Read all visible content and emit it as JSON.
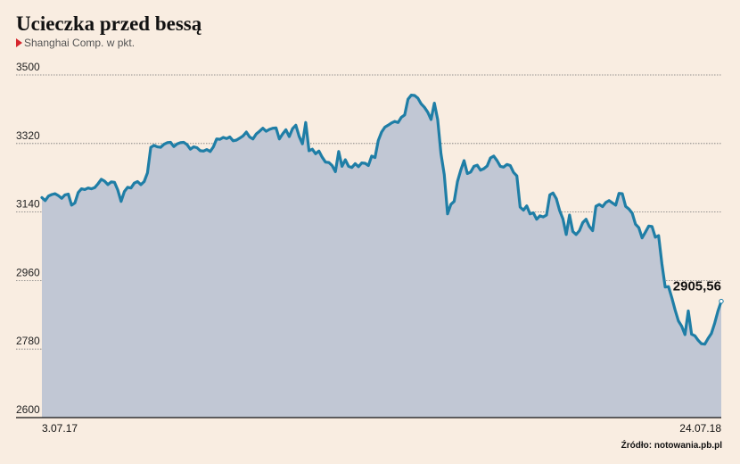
{
  "title": "Ucieczka przed bessą",
  "subtitle": "Shanghai Comp. w pkt.",
  "source": "Źródło: notowania.pb.pl",
  "colors": {
    "line": "#1f7ea6",
    "area": "#c1c7d4",
    "background": "#f9ede1",
    "marker": "#d6262d"
  },
  "chart_data": {
    "type": "area",
    "ylim": [
      2600,
      3500
    ],
    "yticks": [
      3500,
      3320,
      3140,
      2960,
      2780,
      2600
    ],
    "xtick_labels": [
      "3.07.17",
      "24.07.18"
    ],
    "grid": true,
    "end_value_label": "2905,56",
    "series": [
      {
        "values": [
          3178,
          3170,
          3182,
          3186,
          3188,
          3183,
          3176,
          3185,
          3187,
          3158,
          3164,
          3191,
          3201,
          3199,
          3203,
          3201,
          3204,
          3214,
          3226,
          3221,
          3212,
          3219,
          3218,
          3198,
          3168,
          3194,
          3205,
          3203,
          3216,
          3220,
          3212,
          3220,
          3243,
          3310,
          3315,
          3311,
          3310,
          3318,
          3322,
          3323,
          3312,
          3319,
          3322,
          3323,
          3317,
          3305,
          3311,
          3309,
          3301,
          3300,
          3304,
          3299,
          3311,
          3332,
          3331,
          3336,
          3333,
          3337,
          3327,
          3329,
          3334,
          3340,
          3350,
          3337,
          3332,
          3345,
          3352,
          3360,
          3352,
          3357,
          3360,
          3361,
          3332,
          3345,
          3356,
          3338,
          3359,
          3368,
          3339,
          3319,
          3375,
          3301,
          3305,
          3293,
          3300,
          3284,
          3271,
          3270,
          3262,
          3246,
          3299,
          3260,
          3277,
          3260,
          3257,
          3267,
          3259,
          3269,
          3268,
          3262,
          3287,
          3283,
          3328,
          3350,
          3363,
          3368,
          3374,
          3378,
          3375,
          3389,
          3395,
          3436,
          3447,
          3446,
          3439,
          3424,
          3415,
          3402,
          3383,
          3426,
          3383,
          3293,
          3238,
          3135,
          3160,
          3168,
          3220,
          3250,
          3275,
          3241,
          3245,
          3260,
          3263,
          3250,
          3254,
          3261,
          3282,
          3287,
          3275,
          3260,
          3258,
          3265,
          3262,
          3244,
          3235,
          3153,
          3145,
          3156,
          3135,
          3138,
          3121,
          3130,
          3127,
          3132,
          3185,
          3190,
          3175,
          3144,
          3122,
          3081,
          3132,
          3089,
          3081,
          3091,
          3112,
          3121,
          3102,
          3091,
          3155,
          3160,
          3154,
          3165,
          3170,
          3164,
          3158,
          3189,
          3188,
          3155,
          3148,
          3137,
          3108,
          3099,
          3072,
          3087,
          3103,
          3102,
          3074,
          3078,
          3004,
          2943,
          2944,
          2915,
          2883,
          2854,
          2840,
          2818,
          2880,
          2819,
          2815,
          2803,
          2794,
          2793,
          2808,
          2821,
          2848,
          2880,
          2905.56
        ]
      }
    ]
  }
}
